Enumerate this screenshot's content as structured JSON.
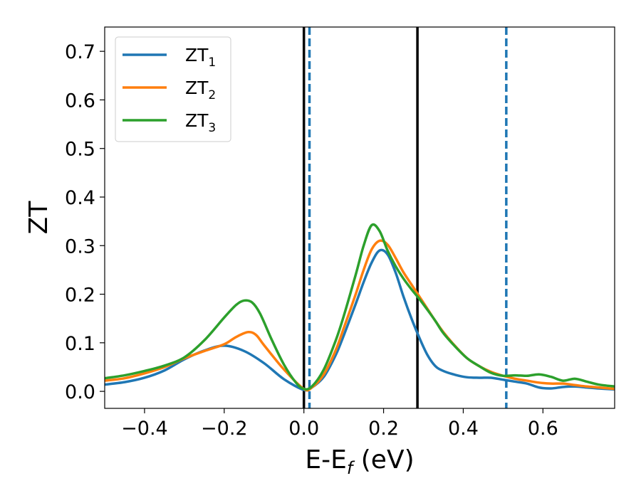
{
  "chart_data": {
    "type": "line",
    "title": "",
    "xlabel_main": "E-E",
    "xlabel_sub": "f",
    "xlabel_unit": " (eV)",
    "ylabel": "ZT",
    "xlim": [
      -0.5,
      0.78
    ],
    "ylim": [
      -0.035,
      0.75
    ],
    "legend_position": "top-left",
    "x_ticks": [
      {
        "value": -0.4,
        "label": "−0.4"
      },
      {
        "value": -0.2,
        "label": "−0.2"
      },
      {
        "value": 0.0,
        "label": "0.0"
      },
      {
        "value": 0.2,
        "label": "0.2"
      },
      {
        "value": 0.4,
        "label": "0.4"
      },
      {
        "value": 0.6,
        "label": "0.6"
      }
    ],
    "y_ticks": [
      {
        "value": 0.0,
        "label": "0.0"
      },
      {
        "value": 0.1,
        "label": "0.1"
      },
      {
        "value": 0.2,
        "label": "0.2"
      },
      {
        "value": 0.3,
        "label": "0.3"
      },
      {
        "value": 0.4,
        "label": "0.4"
      },
      {
        "value": 0.5,
        "label": "0.5"
      },
      {
        "value": 0.6,
        "label": "0.6"
      },
      {
        "value": 0.7,
        "label": "0.7"
      }
    ],
    "vertical_lines": [
      {
        "x": 0.0,
        "style": "solid",
        "color": "#000000"
      },
      {
        "x": 0.285,
        "style": "solid",
        "color": "#000000"
      },
      {
        "x": 0.014,
        "style": "dashed",
        "color": "#1f77b4"
      },
      {
        "x": 0.508,
        "style": "dashed",
        "color": "#1f77b4"
      }
    ],
    "series": [
      {
        "name_main": "ZT",
        "name_sub": "1",
        "color": "#1f77b4",
        "x": [
          -0.5,
          -0.45,
          -0.4,
          -0.35,
          -0.3,
          -0.25,
          -0.2,
          -0.15,
          -0.1,
          -0.05,
          0.0,
          0.02,
          0.05,
          0.08,
          0.1,
          0.13,
          0.15,
          0.17,
          0.19,
          0.21,
          0.23,
          0.25,
          0.27,
          0.29,
          0.31,
          0.33,
          0.35,
          0.38,
          0.41,
          0.44,
          0.47,
          0.5,
          0.53,
          0.56,
          0.59,
          0.62,
          0.65,
          0.68,
          0.71,
          0.74,
          0.78
        ],
        "y": [
          0.014,
          0.019,
          0.028,
          0.043,
          0.066,
          0.084,
          0.094,
          0.083,
          0.058,
          0.025,
          0.003,
          0.008,
          0.03,
          0.075,
          0.115,
          0.18,
          0.225,
          0.265,
          0.29,
          0.282,
          0.245,
          0.195,
          0.15,
          0.11,
          0.075,
          0.052,
          0.042,
          0.034,
          0.029,
          0.028,
          0.028,
          0.024,
          0.02,
          0.016,
          0.008,
          0.006,
          0.009,
          0.01,
          0.008,
          0.006,
          0.004
        ]
      },
      {
        "name_main": "ZT",
        "name_sub": "2",
        "color": "#ff7f0e",
        "x": [
          -0.5,
          -0.45,
          -0.4,
          -0.35,
          -0.3,
          -0.25,
          -0.2,
          -0.17,
          -0.14,
          -0.12,
          -0.1,
          -0.05,
          0.0,
          0.02,
          0.05,
          0.08,
          0.1,
          0.13,
          0.15,
          0.17,
          0.19,
          0.21,
          0.23,
          0.25,
          0.27,
          0.29,
          0.31,
          0.33,
          0.35,
          0.38,
          0.41,
          0.44,
          0.47,
          0.5,
          0.53,
          0.56,
          0.59,
          0.62,
          0.65,
          0.68,
          0.71,
          0.74,
          0.78
        ],
        "y": [
          0.022,
          0.027,
          0.037,
          0.05,
          0.068,
          0.083,
          0.097,
          0.112,
          0.122,
          0.116,
          0.095,
          0.045,
          0.005,
          0.008,
          0.035,
          0.085,
          0.13,
          0.2,
          0.25,
          0.292,
          0.31,
          0.302,
          0.275,
          0.245,
          0.22,
          0.195,
          0.17,
          0.145,
          0.122,
          0.093,
          0.068,
          0.052,
          0.04,
          0.032,
          0.026,
          0.022,
          0.018,
          0.016,
          0.016,
          0.013,
          0.01,
          0.008,
          0.005
        ]
      },
      {
        "name_main": "ZT",
        "name_sub": "3",
        "color": "#2ca02c",
        "x": [
          -0.5,
          -0.45,
          -0.4,
          -0.35,
          -0.3,
          -0.25,
          -0.2,
          -0.17,
          -0.15,
          -0.13,
          -0.11,
          -0.08,
          -0.05,
          -0.02,
          0.0,
          0.02,
          0.05,
          0.08,
          0.1,
          0.13,
          0.15,
          0.17,
          0.19,
          0.21,
          0.23,
          0.25,
          0.27,
          0.29,
          0.31,
          0.33,
          0.35,
          0.38,
          0.41,
          0.44,
          0.47,
          0.5,
          0.53,
          0.56,
          0.59,
          0.62,
          0.65,
          0.68,
          0.71,
          0.74,
          0.78
        ],
        "y": [
          0.027,
          0.033,
          0.042,
          0.053,
          0.07,
          0.105,
          0.152,
          0.178,
          0.187,
          0.183,
          0.16,
          0.105,
          0.055,
          0.018,
          0.005,
          0.01,
          0.045,
          0.105,
          0.155,
          0.24,
          0.3,
          0.342,
          0.33,
          0.29,
          0.258,
          0.232,
          0.21,
          0.19,
          0.168,
          0.145,
          0.12,
          0.092,
          0.068,
          0.052,
          0.038,
          0.032,
          0.033,
          0.032,
          0.035,
          0.03,
          0.022,
          0.026,
          0.02,
          0.014,
          0.01
        ]
      }
    ]
  }
}
